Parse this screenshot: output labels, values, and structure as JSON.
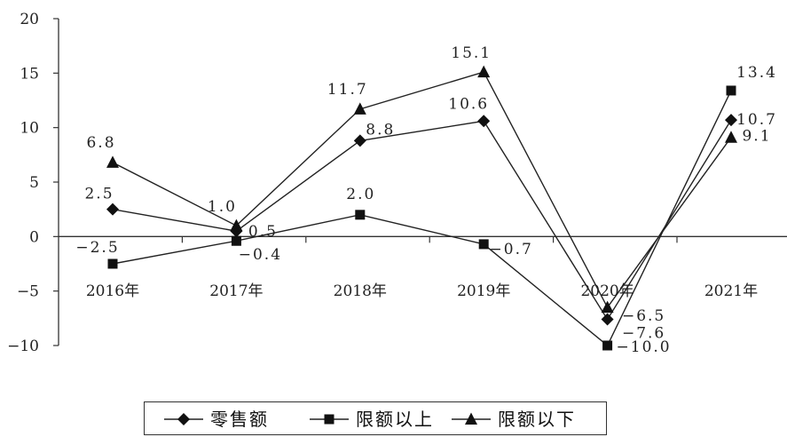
{
  "chart_data": {
    "type": "line",
    "categories": [
      "2016年",
      "2017年",
      "2018年",
      "2019年",
      "2020年",
      "2021年"
    ],
    "ylim": [
      -10,
      20
    ],
    "yticks": [
      "20",
      "15",
      "10",
      "5",
      "0",
      "−5",
      "−10"
    ],
    "yticks_values": [
      20,
      15,
      10,
      5,
      0,
      -5,
      -10
    ],
    "grid": false,
    "legend_position": "bottom",
    "series": [
      {
        "name": "零售额",
        "marker": "diamond",
        "values": [
          2.5,
          0.5,
          8.8,
          10.6,
          -7.6,
          10.7
        ],
        "labels": [
          "2.5",
          "0.5",
          "8.8",
          "10.6",
          "−7.6",
          "10.7"
        ]
      },
      {
        "name": "限额以上",
        "marker": "square",
        "values": [
          -2.5,
          -0.4,
          2.0,
          -0.7,
          -10.0,
          13.4
        ],
        "labels": [
          "−2.5",
          "−0.4",
          "2.0",
          "−0.7",
          "−10.0",
          "13.4"
        ]
      },
      {
        "name": "限额以下",
        "marker": "triangle",
        "values": [
          6.8,
          1.0,
          11.7,
          15.1,
          -6.5,
          9.1
        ],
        "labels": [
          "6.8",
          "1.0",
          "11.7",
          "15.1",
          "−6.5",
          "9.1"
        ]
      }
    ],
    "colors": {
      "line": "#222222",
      "marker": "#111111",
      "axis": "#333333"
    }
  }
}
